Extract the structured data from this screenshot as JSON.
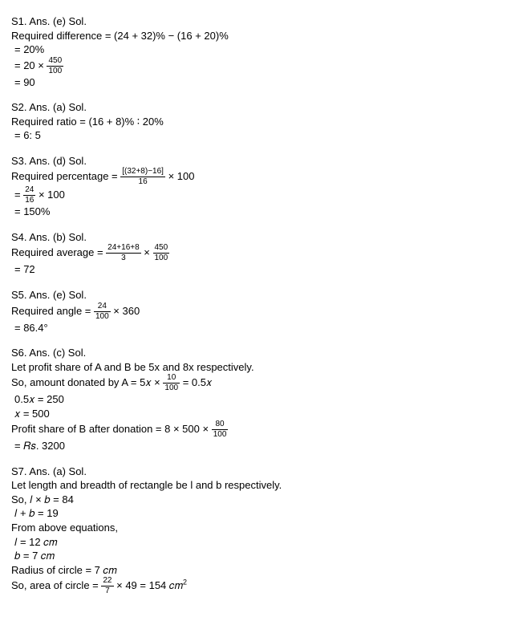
{
  "s1": {
    "head": "S1. Ans. (e) Sol.",
    "l1a": "Required difference = (24 + 32)% − (16 + 20)%",
    "l2": "= 20%",
    "l3_pre": "= 20 × ",
    "l3_num": "450",
    "l3_den": "100",
    "l4": "= 90"
  },
  "s2": {
    "head": "S2. Ans. (a) Sol.",
    "l1": "Required ratio = (16 + 8)% ∶ 20%",
    "l2": "= 6: 5"
  },
  "s3": {
    "head": "S3. Ans. (d) Sol.",
    "l1_pre": "Required percentage = ",
    "l1_num": "[(32+8)−16]",
    "l1_den": "16",
    "l1_post": " × 100",
    "l2_pre": "= ",
    "l2_num": "24",
    "l2_den": "16",
    "l2_post": " × 100",
    "l3": "= 150%"
  },
  "s4": {
    "head": "S4. Ans. (b) Sol.",
    "l1_pre": "Required average = ",
    "l1_num": "24+16+8",
    "l1_den": "3",
    "l1_mid": " × ",
    "l1_num2": "450",
    "l1_den2": "100",
    "l2": "= 72"
  },
  "s5": {
    "head": "S5. Ans. (e) Sol.",
    "l1_pre": "Required angle = ",
    "l1_num": "24",
    "l1_den": "100",
    "l1_post": " × 360",
    "l2": "= 86.4°"
  },
  "s6": {
    "head": "S6. Ans. (c) Sol.",
    "l1": "Let profit share of A and B be 5x and 8x respectively.",
    "l2_pre": "So, amount donated by A = 5𝑥 × ",
    "l2_num": "10",
    "l2_den": "100",
    "l2_post": " = 0.5𝑥",
    "l3": "0.5𝑥 = 250",
    "l4": "𝑥 = 500",
    "l5_pre": "Profit share of B after donation = 8 × 500 × ",
    "l5_num": "80",
    "l5_den": "100",
    "l6": "= 𝑅𝑠. 3200"
  },
  "s7": {
    "head": "S7. Ans. (a) Sol.",
    "l1": "Let length and breadth of rectangle be l and b respectively.",
    "l2": "So, 𝑙 × 𝑏 = 84",
    "l3": "𝑙 + 𝑏 = 19",
    "l4": "From above equations,",
    "l5": "𝑙 = 12 𝑐𝑚",
    "l6": "𝑏 = 7 𝑐𝑚",
    "l7": "Radius of circle = 7 𝑐𝑚",
    "l8_pre": "So, area of circle = ",
    "l8_num": "22",
    "l8_den": "7",
    "l8_post": " × 49 = 154 𝑐𝑚",
    "l8_sup": "2"
  }
}
